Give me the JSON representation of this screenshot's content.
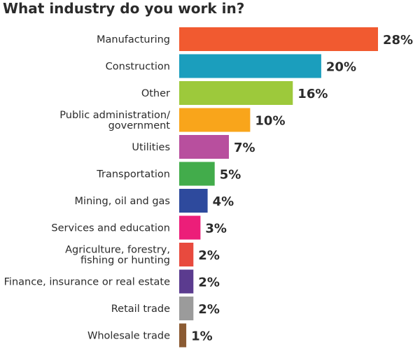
{
  "chart_data": {
    "type": "bar",
    "orientation": "horizontal",
    "title": "What industry do you work in?",
    "categories": [
      "Manufacturing",
      "Construction",
      "Other",
      "Public administration/\ngovernment",
      "Utilities",
      "Transportation",
      "Mining, oil and gas",
      "Services and education",
      "Agriculture, forestry,\nfishing or hunting",
      "Finance, insurance or real estate",
      "Retail trade",
      "Wholesale trade"
    ],
    "values": [
      28,
      20,
      16,
      10,
      7,
      5,
      4,
      3,
      2,
      2,
      2,
      1
    ],
    "value_labels": [
      "28%",
      "20%",
      "16%",
      "10%",
      "7%",
      "5%",
      "4%",
      "3%",
      "2%",
      "2%",
      "2%",
      "1%"
    ],
    "unit": "%",
    "colors": [
      "#f15a30",
      "#1b9ebd",
      "#9dc93b",
      "#f9a51b",
      "#b84f9e",
      "#42ac4b",
      "#2e4a9d",
      "#ec1e79",
      "#e84a3e",
      "#5b3b8f",
      "#9b9b9b",
      "#8b5b33"
    ],
    "xlim": [
      0,
      28
    ],
    "grid": false,
    "legend": "none"
  }
}
